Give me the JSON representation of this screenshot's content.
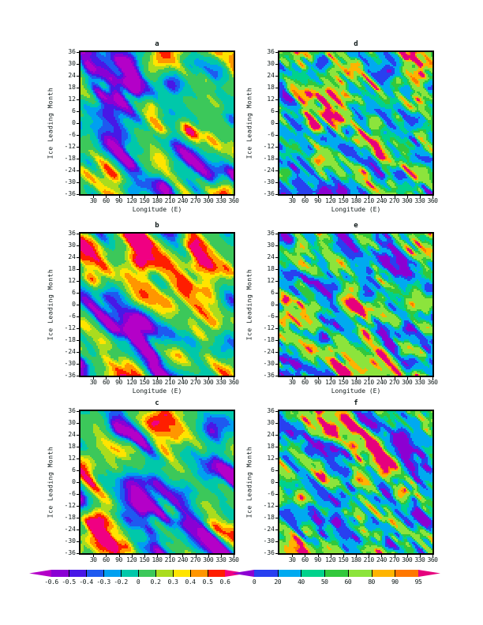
{
  "axes": {
    "ylabel": "Ice Leading Month",
    "xlabel": "Longitude (E)",
    "yticks": [
      36,
      30,
      24,
      18,
      12,
      6,
      0,
      -6,
      -12,
      -18,
      -24,
      -30,
      -36
    ],
    "xticks": [
      30,
      60,
      90,
      120,
      150,
      180,
      210,
      240,
      270,
      300,
      330,
      360
    ],
    "xlim": [
      0,
      360
    ],
    "ylim": [
      -36,
      36
    ]
  },
  "panels": [
    {
      "id": "a",
      "title": "a",
      "column": "left",
      "row": 0,
      "xlabel": "Longitude (E)",
      "palette": "correlation",
      "seed": 3
    },
    {
      "id": "d",
      "title": "d",
      "column": "right",
      "row": 0,
      "xlabel": "Longitude (E)",
      "palette": "percent",
      "seed": 21
    },
    {
      "id": "b",
      "title": "b",
      "column": "left",
      "row": 1,
      "xlabel": "Longitude (E)",
      "palette": "correlation",
      "seed": 7
    },
    {
      "id": "e",
      "title": "e",
      "column": "right",
      "row": 1,
      "xlabel": "Longitude (E)",
      "palette": "percent",
      "seed": 29
    },
    {
      "id": "c",
      "title": "c",
      "column": "left",
      "row": 2,
      "xlabel": "",
      "palette": "correlation",
      "seed": 11
    },
    {
      "id": "f",
      "title": "f",
      "column": "right",
      "row": 2,
      "xlabel": "",
      "palette": "percent",
      "seed": 35
    }
  ],
  "colorbars": {
    "correlation": {
      "labels": [
        "-0.6",
        "-0.5",
        "-0.4",
        "-0.3",
        "-0.2",
        "0",
        "0.2",
        "0.3",
        "0.4",
        "0.5",
        "0.6"
      ],
      "levels": [
        -0.6,
        -0.5,
        -0.4,
        -0.3,
        -0.2,
        0,
        0.2,
        0.3,
        0.4,
        0.5,
        0.6
      ],
      "segment_colors": [
        "#8a00d4",
        "#4818e6",
        "#1e5af0",
        "#00a0f0",
        "#00c8aa",
        "#3cc85a",
        "#aadc1e",
        "#ffe400",
        "#ff9600",
        "#ff1e00"
      ],
      "under_color": "#b400c8",
      "over_color": "#f00082"
    },
    "percent": {
      "labels": [
        "0",
        "20",
        "40",
        "50",
        "60",
        "80",
        "90",
        "95"
      ],
      "levels": [
        0,
        20,
        40,
        50,
        60,
        80,
        90,
        95
      ],
      "segment_colors": [
        "#2840f0",
        "#00aaf0",
        "#00d28c",
        "#32c83c",
        "#8ce43c",
        "#ffb400",
        "#ff7800"
      ],
      "under_color": "#8c00d2",
      "over_color": "#e6007d"
    }
  },
  "chart_data": [
    {
      "type": "contour",
      "panel": "a",
      "title": "a",
      "quantity": "correlation",
      "xlabel": "Longitude (E)",
      "ylabel": "Ice Leading Month",
      "xlim": [
        0,
        360
      ],
      "ylim": [
        -36,
        36
      ],
      "xticks": [
        30,
        60,
        90,
        120,
        150,
        180,
        210,
        240,
        270,
        300,
        330,
        360
      ],
      "yticks": [
        36,
        30,
        24,
        18,
        12,
        6,
        0,
        -6,
        -12,
        -18,
        -24,
        -30,
        -36
      ],
      "levels": [
        -0.6,
        -0.5,
        -0.4,
        -0.3,
        -0.2,
        0,
        0.2,
        0.3,
        0.4,
        0.5,
        0.6
      ],
      "colorbar_position": "bottom",
      "grid": false
    },
    {
      "type": "contour",
      "panel": "b",
      "title": "b",
      "quantity": "correlation",
      "xlabel": "Longitude (E)",
      "ylabel": "Ice Leading Month",
      "xlim": [
        0,
        360
      ],
      "ylim": [
        -36,
        36
      ],
      "xticks": [
        30,
        60,
        90,
        120,
        150,
        180,
        210,
        240,
        270,
        300,
        330,
        360
      ],
      "yticks": [
        36,
        30,
        24,
        18,
        12,
        6,
        0,
        -6,
        -12,
        -18,
        -24,
        -30,
        -36
      ],
      "levels": [
        -0.6,
        -0.5,
        -0.4,
        -0.3,
        -0.2,
        0,
        0.2,
        0.3,
        0.4,
        0.5,
        0.6
      ],
      "colorbar_position": "bottom",
      "grid": false
    },
    {
      "type": "contour",
      "panel": "c",
      "title": "c",
      "quantity": "correlation",
      "xlabel": "",
      "ylabel": "Ice Leading Month",
      "xlim": [
        0,
        360
      ],
      "ylim": [
        -36,
        36
      ],
      "xticks": [
        30,
        60,
        90,
        120,
        150,
        180,
        210,
        240,
        270,
        300,
        330,
        360
      ],
      "yticks": [
        36,
        30,
        24,
        18,
        12,
        6,
        0,
        -6,
        -12,
        -18,
        -24,
        -30,
        -36
      ],
      "levels": [
        -0.6,
        -0.5,
        -0.4,
        -0.3,
        -0.2,
        0,
        0.2,
        0.3,
        0.4,
        0.5,
        0.6
      ],
      "colorbar_position": "bottom",
      "grid": false
    },
    {
      "type": "contour",
      "panel": "d",
      "title": "d",
      "quantity": "percent",
      "xlabel": "Longitude (E)",
      "ylabel": "Ice Leading Month",
      "xlim": [
        0,
        360
      ],
      "ylim": [
        -36,
        36
      ],
      "xticks": [
        30,
        60,
        90,
        120,
        150,
        180,
        210,
        240,
        270,
        300,
        330,
        360
      ],
      "yticks": [
        36,
        30,
        24,
        18,
        12,
        6,
        0,
        -6,
        -12,
        -18,
        -24,
        -30,
        -36
      ],
      "levels": [
        0,
        20,
        40,
        50,
        60,
        80,
        90,
        95
      ],
      "colorbar_position": "bottom",
      "grid": false
    },
    {
      "type": "contour",
      "panel": "e",
      "title": "e",
      "quantity": "percent",
      "xlabel": "Longitude (E)",
      "ylabel": "Ice Leading Month",
      "xlim": [
        0,
        360
      ],
      "ylim": [
        -36,
        36
      ],
      "xticks": [
        30,
        60,
        90,
        120,
        150,
        180,
        210,
        240,
        270,
        300,
        330,
        360
      ],
      "yticks": [
        36,
        30,
        24,
        18,
        12,
        6,
        0,
        -6,
        -12,
        -18,
        -24,
        -30,
        -36
      ],
      "levels": [
        0,
        20,
        40,
        50,
        60,
        80,
        90,
        95
      ],
      "colorbar_position": "bottom",
      "grid": false
    },
    {
      "type": "contour",
      "panel": "f",
      "title": "f",
      "quantity": "percent",
      "xlabel": "",
      "ylabel": "Ice Leading Month",
      "xlim": [
        0,
        360
      ],
      "ylim": [
        -36,
        36
      ],
      "xticks": [
        30,
        60,
        90,
        120,
        150,
        180,
        210,
        240,
        270,
        300,
        330,
        360
      ],
      "yticks": [
        36,
        30,
        24,
        18,
        12,
        6,
        0,
        -6,
        -12,
        -18,
        -24,
        -30,
        -36
      ],
      "levels": [
        0,
        20,
        40,
        50,
        60,
        80,
        90,
        95
      ],
      "colorbar_position": "bottom",
      "grid": false
    }
  ]
}
